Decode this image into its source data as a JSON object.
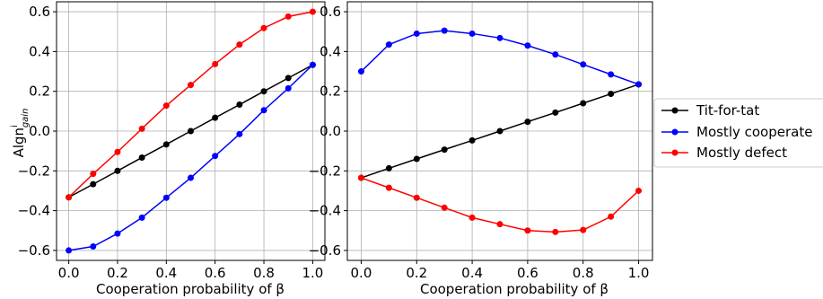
{
  "chart_data": [
    {
      "type": "line",
      "xlabel": "Cooperation probability of β",
      "ylabel": "Algn",
      "ylabel_superscript": "i",
      "ylabel_subscript": "gain",
      "xlim": [
        -0.05,
        1.05
      ],
      "ylim": [
        -0.65,
        0.65
      ],
      "xticks": [
        "0.0",
        "0.2",
        "0.4",
        "0.6",
        "0.8",
        "1.0"
      ],
      "yticks": [
        "−0.6",
        "−0.4",
        "−0.2",
        "0.0",
        "0.2",
        "0.4",
        "0.6"
      ],
      "grid": true,
      "x": [
        0.0,
        0.1,
        0.2,
        0.3,
        0.4,
        0.5,
        0.6,
        0.7,
        0.8,
        0.9,
        1.0
      ],
      "series": [
        {
          "name": "Tit-for-tat",
          "color": "#000000",
          "values": [
            -0.333,
            -0.267,
            -0.2,
            -0.133,
            -0.067,
            0.0,
            0.067,
            0.133,
            0.2,
            0.267,
            0.333
          ]
        },
        {
          "name": "Mostly cooperate",
          "color": "#0000ff",
          "values": [
            -0.6,
            -0.58,
            -0.515,
            -0.435,
            -0.335,
            -0.235,
            -0.125,
            -0.015,
            0.105,
            0.215,
            0.333
          ]
        },
        {
          "name": "Mostly defect",
          "color": "#ff0000",
          "values": [
            -0.333,
            -0.215,
            -0.105,
            0.012,
            0.128,
            0.232,
            0.337,
            0.435,
            0.518,
            0.576,
            0.6
          ]
        }
      ]
    },
    {
      "type": "line",
      "xlabel": "Cooperation probability of β",
      "xlim": [
        -0.05,
        1.05
      ],
      "ylim": [
        -0.65,
        0.65
      ],
      "xticks": [
        "0.0",
        "0.2",
        "0.4",
        "0.6",
        "0.8",
        "1.0"
      ],
      "yticks": [
        "−0.6",
        "−0.4",
        "−0.2",
        "0.0",
        "0.2",
        "0.4",
        "0.6"
      ],
      "grid": true,
      "x": [
        0.0,
        0.1,
        0.2,
        0.3,
        0.4,
        0.5,
        0.6,
        0.7,
        0.8,
        0.9,
        1.0
      ],
      "series": [
        {
          "name": "Tit-for-tat",
          "color": "#000000",
          "values": [
            -0.235,
            -0.187,
            -0.14,
            -0.093,
            -0.047,
            0.0,
            0.047,
            0.093,
            0.14,
            0.187,
            0.235
          ]
        },
        {
          "name": "Mostly cooperate",
          "color": "#0000ff",
          "values": [
            0.3,
            0.435,
            0.49,
            0.505,
            0.49,
            0.468,
            0.43,
            0.385,
            0.335,
            0.285,
            0.235
          ]
        },
        {
          "name": "Mostly defect",
          "color": "#ff0000",
          "values": [
            -0.235,
            -0.285,
            -0.335,
            -0.385,
            -0.435,
            -0.468,
            -0.5,
            -0.507,
            -0.497,
            -0.43,
            -0.3
          ]
        }
      ]
    }
  ],
  "legend": {
    "placement": "right",
    "entries": [
      "Tit-for-tat",
      "Mostly cooperate",
      "Mostly defect"
    ]
  }
}
